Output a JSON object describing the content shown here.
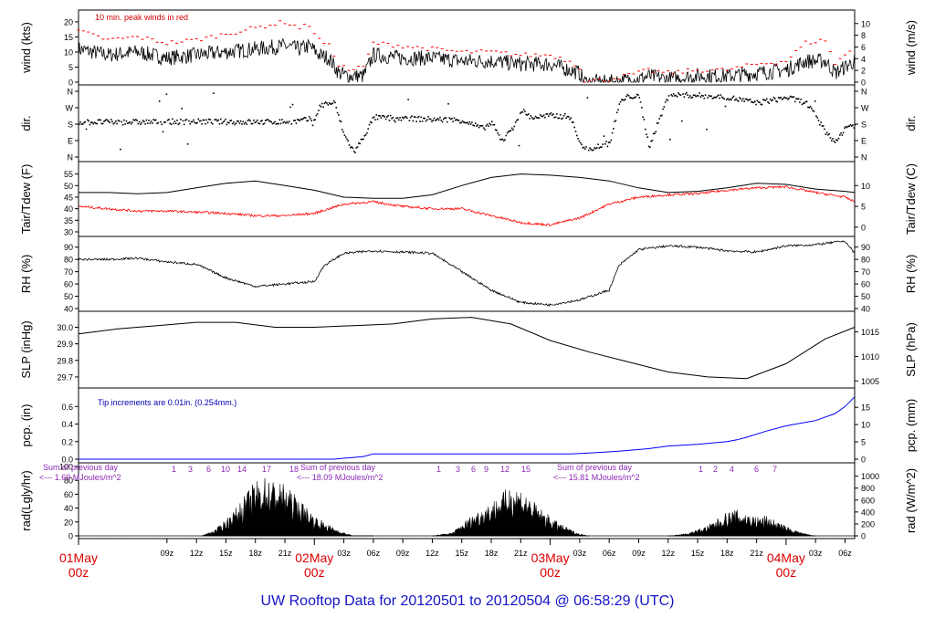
{
  "chart_data": {
    "type": "line",
    "title": "UW Rooftop Data for 20120501  to  20120504 @ 06:58:29  (UTC)",
    "x_axis": {
      "unit": "hours since 2012-05-01 00z",
      "range": [
        0,
        78.98
      ],
      "ticks": [
        {
          "value": 9,
          "label": "09z"
        },
        {
          "value": 12,
          "label": "12z"
        },
        {
          "value": 15,
          "label": "15z"
        },
        {
          "value": 18,
          "label": "18z"
        },
        {
          "value": 21,
          "label": "21z"
        },
        {
          "value": 27,
          "label": "03z"
        },
        {
          "value": 30,
          "label": "06z"
        },
        {
          "value": 33,
          "label": "09z"
        },
        {
          "value": 36,
          "label": "12z"
        },
        {
          "value": 39,
          "label": "15z"
        },
        {
          "value": 42,
          "label": "18z"
        },
        {
          "value": 45,
          "label": "21z"
        },
        {
          "value": 51,
          "label": "03z"
        },
        {
          "value": 54,
          "label": "06z"
        },
        {
          "value": 57,
          "label": "09z"
        },
        {
          "value": 60,
          "label": "12z"
        },
        {
          "value": 63,
          "label": "15z"
        },
        {
          "value": 66,
          "label": "18z"
        },
        {
          "value": 69,
          "label": "21z"
        },
        {
          "value": 75,
          "label": "03z"
        },
        {
          "value": 78,
          "label": "06z"
        }
      ],
      "day_labels": [
        {
          "value": 0,
          "line1": "01May",
          "line2": "00z"
        },
        {
          "value": 24,
          "line1": "02May",
          "line2": "00z"
        },
        {
          "value": 48,
          "line1": "03May",
          "line2": "00z"
        },
        {
          "value": 72,
          "line1": "04May",
          "line2": "00z"
        }
      ]
    },
    "panels": [
      {
        "id": "wind",
        "ylabel": "wind (kts)",
        "ylabel_right": "wind (m/s)",
        "ylim": [
          0,
          23
        ],
        "yticks": [
          0,
          5,
          10,
          15,
          20
        ],
        "yticks_right": [
          {
            "label": "0",
            "value": 0
          },
          {
            "label": "2",
            "value": 3.89
          },
          {
            "label": "4",
            "value": 7.78
          },
          {
            "label": "6",
            "value": 11.66
          },
          {
            "label": "8",
            "value": 15.55
          },
          {
            "label": "10",
            "value": 19.44
          }
        ],
        "annotation": "10 min. peak winds in red",
        "series": [
          {
            "name": "wind speed",
            "color": "#000000",
            "style": "noisy",
            "x": [
              0,
              3,
              6,
              9,
              12,
              15,
              18,
              21,
              22.5,
              23.5,
              24.5,
              25.5,
              26.5,
              27.5,
              29,
              30,
              33,
              36,
              39,
              42,
              45,
              48,
              50,
              51,
              51.5,
              54,
              57,
              58,
              60,
              63,
              66,
              69,
              72,
              74,
              76,
              77,
              78.98
            ],
            "y": [
              11,
              9,
              10,
              8,
              9,
              10,
              11,
              12,
              11,
              12,
              9,
              8,
              3,
              2,
              2,
              9,
              8,
              8,
              7,
              7,
              6,
              6,
              4,
              3,
              0,
              0,
              1,
              2,
              1,
              2,
              2,
              3,
              4,
              7,
              7,
              3,
              7
            ]
          },
          {
            "name": "10 min. peak winds",
            "color": "#ff0000",
            "style": "peak",
            "x": [
              0,
              3,
              6,
              9,
              12,
              15,
              18,
              21,
              22.5,
              23.5,
              24.5,
              25.5,
              26.5,
              27.5,
              29,
              30,
              33,
              36,
              39,
              42,
              45,
              48,
              50,
              51,
              51.5,
              54,
              57,
              58,
              60,
              63,
              66,
              69,
              72,
              74,
              76,
              77,
              78.98
            ],
            "y": [
              17,
              14,
              15,
              13,
              14,
              16,
              18,
              20,
              18,
              19,
              14,
              12,
              6,
              4,
              5,
              13,
              12,
              11,
              10,
              10,
              9,
              9,
              7,
              5,
              0,
              1,
              3,
              4,
              3,
              4,
              4,
              6,
              7,
              13,
              14,
              6,
              12
            ]
          }
        ]
      },
      {
        "id": "dir",
        "ylabel": "dir.",
        "ylabel_right": "dir.",
        "ylim": [
          0,
          360
        ],
        "yticks_labeled": [
          {
            "label": "N",
            "value": 0
          },
          {
            "label": "E",
            "value": 90
          },
          {
            "label": "S",
            "value": 180
          },
          {
            "label": "W",
            "value": 270
          },
          {
            "label": "N",
            "value": 360
          }
        ],
        "series": [
          {
            "name": "wind direction",
            "color": "#000000",
            "style": "dots",
            "x": [
              0,
              6,
              12,
              18,
              22,
              24,
              24.5,
              25,
              26,
              27,
              28,
              29,
              30,
              33,
              36,
              39,
              41,
              42,
              43,
              44,
              45,
              46,
              48,
              50,
              51,
              52,
              54,
              55,
              56,
              57,
              58,
              60,
              63,
              66,
              69,
              72,
              74,
              76,
              77,
              78,
              78.98
            ],
            "y": [
              195,
              195,
              198,
              195,
              198,
              215,
              280,
              295,
              300,
              120,
              30,
              120,
              220,
              215,
              210,
              205,
              160,
              190,
              90,
              150,
              260,
              220,
              230,
              225,
              70,
              50,
              80,
              300,
              340,
              330,
              60,
              345,
              340,
              330,
              300,
              330,
              300,
              140,
              80,
              170,
              180
            ]
          }
        ]
      },
      {
        "id": "temp",
        "ylabel": "Tair/Tdew (F)",
        "ylabel_right": "Tair/Tdew (C)",
        "ylim": [
          30,
          58
        ],
        "yticks": [
          30,
          35,
          40,
          45,
          50,
          55
        ],
        "yticks_right": [
          {
            "label": "0",
            "value": 32
          },
          {
            "label": "5",
            "value": 41
          },
          {
            "label": "10",
            "value": 50
          }
        ],
        "series": [
          {
            "name": "Tair",
            "color": "#000000",
            "style": "line",
            "x": [
              0,
              3,
              6,
              9,
              12,
              15,
              18,
              21,
              24,
              27,
              30,
              33,
              36,
              39,
              42,
              45,
              48,
              51,
              54,
              57,
              60,
              63,
              66,
              69,
              72,
              75,
              78,
              78.98
            ],
            "y": [
              47,
              47,
              46.5,
              47,
              49,
              51,
              52,
              50,
              48,
              45,
              44.5,
              44.5,
              46,
              50,
              53.5,
              55,
              54.5,
              53.5,
              52,
              49,
              47,
              47.5,
              49,
              51,
              50.5,
              48.5,
              47.5,
              47
            ]
          },
          {
            "name": "Tdew",
            "color": "#ff0000",
            "style": "noisy",
            "x": [
              0,
              3,
              6,
              9,
              12,
              15,
              18,
              21,
              24,
              27,
              30,
              33,
              36,
              39,
              42,
              45,
              48,
              51,
              54,
              57,
              60,
              63,
              66,
              69,
              72,
              75,
              78,
              78.98
            ],
            "y": [
              41,
              40,
              39,
              39,
              38.5,
              38,
              37,
              37,
              38,
              42,
              43,
              41,
              40,
              40,
              37,
              34,
              33,
              36,
              42,
              45,
              46,
              46.5,
              48,
              49,
              49.5,
              47,
              45,
              43
            ]
          }
        ]
      },
      {
        "id": "rh",
        "ylabel": "RH (%)",
        "ylabel_right": "RH (%)",
        "ylim": [
          40,
          95
        ],
        "yticks": [
          40,
          50,
          60,
          70,
          80,
          90
        ],
        "series": [
          {
            "name": "RH",
            "color": "#000000",
            "style": "noisy",
            "x": [
              0,
              3,
              6,
              9,
              12,
              15,
              18,
              21,
              24,
              25,
              27,
              30,
              33,
              36,
              39,
              42,
              45,
              48,
              51,
              54,
              55,
              57,
              60,
              63,
              66,
              69,
              72,
              75,
              78,
              78.98
            ],
            "y": [
              80,
              80,
              81,
              78,
              76,
              65,
              58,
              60,
              62,
              75,
              85,
              87,
              86,
              85,
              70,
              55,
              45,
              43,
              47,
              55,
              75,
              88,
              91,
              90,
              87,
              86,
              91,
              92,
              95,
              85
            ]
          }
        ]
      },
      {
        "id": "slp",
        "ylabel": "SLP (inHg)",
        "ylabel_right": "SLP (hPa)",
        "ylim": [
          29.65,
          30.08
        ],
        "yticks": [
          29.7,
          29.8,
          29.9,
          30.0
        ],
        "yticks_right": [
          {
            "label": "1005",
            "value": 29.676
          },
          {
            "label": "1010",
            "value": 29.824
          },
          {
            "label": "1015",
            "value": 29.972
          }
        ],
        "series": [
          {
            "name": "SLP",
            "color": "#000000",
            "style": "line",
            "x": [
              0,
              4,
              8,
              12,
              16,
              20,
              24,
              28,
              32,
              36,
              40,
              44,
              48,
              52,
              56,
              60,
              64,
              68,
              72,
              76,
              78.98
            ],
            "y": [
              29.96,
              29.99,
              30.01,
              30.03,
              30.03,
              30.0,
              30.0,
              30.01,
              30.02,
              30.05,
              30.06,
              30.02,
              29.92,
              29.85,
              29.79,
              29.73,
              29.7,
              29.69,
              29.78,
              29.93,
              30.0
            ]
          }
        ]
      },
      {
        "id": "pcp",
        "ylabel": "pcp. (in)",
        "ylabel_right": "pcp. (mm)",
        "ylim": [
          0,
          0.78
        ],
        "yticks": [
          0.0,
          0.2,
          0.4,
          0.6
        ],
        "yticks_right": [
          {
            "label": "0",
            "value": 0
          },
          {
            "label": "5",
            "value": 0.197
          },
          {
            "label": "10",
            "value": 0.394
          },
          {
            "label": "15",
            "value": 0.591
          }
        ],
        "annotation": "Tip increments are 0.01in. (0.254mm.)",
        "series": [
          {
            "name": "cumulative precipitation",
            "color": "#0000ff",
            "style": "step",
            "x": [
              0,
              26,
              27,
              28,
              29,
              30,
              50,
              52,
              55,
              58,
              60,
              63,
              66,
              67,
              68,
              70,
              72,
              75,
              77,
              78,
              78.98
            ],
            "y": [
              0,
              0,
              0.01,
              0.02,
              0.03,
              0.06,
              0.06,
              0.07,
              0.09,
              0.12,
              0.15,
              0.17,
              0.2,
              0.22,
              0.25,
              0.32,
              0.38,
              0.44,
              0.52,
              0.6,
              0.71
            ]
          }
        ]
      },
      {
        "id": "rad",
        "ylabel": "rad(Lgly/hr)",
        "ylabel_right": "rad (W/m^2)",
        "ylim": [
          0,
          100
        ],
        "yticks": [
          0,
          20,
          40,
          60,
          80,
          100
        ],
        "yticks_right": [
          {
            "label": "0",
            "value": 0
          },
          {
            "label": "200",
            "value": 17.2
          },
          {
            "label": "400",
            "value": 34.4
          },
          {
            "label": "600",
            "value": 51.6
          },
          {
            "label": "800",
            "value": 68.8
          },
          {
            "label": "1000",
            "value": 86.0
          }
        ],
        "series": [
          {
            "name": "solar radiation",
            "color": "#000000",
            "style": "filled",
            "x": [
              0,
              12.5,
              14,
              16,
              18,
              19,
              20,
              21,
              22,
              23,
              24,
              25,
              26,
              27,
              28,
              30,
              36,
              38,
              40,
              42,
              43,
              44,
              45,
              46,
              47,
              48,
              49,
              50,
              51,
              52,
              60,
              62,
              64,
              65,
              66,
              67,
              68,
              69,
              70,
              71,
              72,
              73,
              74,
              75,
              79
            ],
            "y": [
              0,
              0,
              10,
              40,
              80,
              85,
              80,
              75,
              60,
              45,
              30,
              20,
              12,
              5,
              0,
              0,
              0,
              5,
              30,
              50,
              60,
              75,
              70,
              55,
              40,
              28,
              18,
              10,
              3,
              0,
              0,
              4,
              15,
              25,
              35,
              38,
              33,
              28,
              30,
              22,
              14,
              8,
              3,
              0,
              0
            ]
          }
        ],
        "daily_labels": [
          {
            "x": 0,
            "lines": [
              "Sum of previous day",
              "<--- 1.69 MJoules/m^2"
            ]
          },
          {
            "x": 24,
            "lines": [
              "Sum of previous day",
              "<--- 18.09 MJoules/m^2"
            ]
          },
          {
            "x": 48,
            "lines": [
              "Sum of previous day",
              "<--- 15.81 MJoules/m^2"
            ]
          }
        ],
        "hour_labels": [
          {
            "day": 1,
            "marks": [
              "1",
              "3",
              "6",
              "10",
              "14",
              "17",
              "18"
            ]
          },
          {
            "day": 2,
            "marks": [
              "1",
              "3",
              "6",
              "9",
              "12",
              "15"
            ]
          },
          {
            "day": 3,
            "marks": [
              "1",
              "2",
              "4",
              "6",
              "7"
            ]
          }
        ]
      }
    ]
  }
}
